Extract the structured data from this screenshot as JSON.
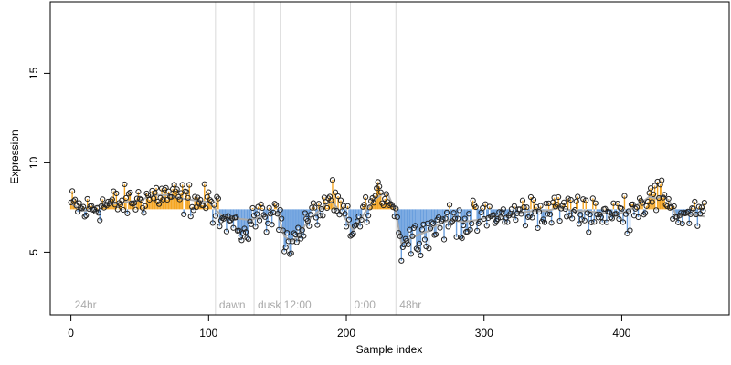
{
  "chart_data": {
    "type": "scatter",
    "xlabel": "Sample index",
    "ylabel": "Expression",
    "xlim": [
      -15,
      478
    ],
    "ylim": [
      1.5,
      19.0
    ],
    "x_ticks": [
      0,
      100,
      200,
      300,
      400
    ],
    "y_ticks": [
      5,
      10,
      15
    ],
    "baseline": 7.4,
    "colors": {
      "above": "#f5a623",
      "below": "#6a9fde",
      "points": "#222222",
      "trend": "#aaaaaa",
      "divider": "#d9d9d9",
      "label": "#aaaaaa"
    },
    "conditions": [
      {
        "label": "24hr",
        "start": 0
      },
      {
        "label": "dawn",
        "start": 105
      },
      {
        "label": "dusk",
        "start": 133
      },
      {
        "label": "12:00",
        "start": 152
      },
      {
        "label": "0:00",
        "start": 203
      },
      {
        "label": "48hr",
        "start": 236
      }
    ],
    "x": [],
    "trend": [
      [
        0,
        7.7
      ],
      [
        10,
        7.3
      ],
      [
        20,
        7.6
      ],
      [
        30,
        7.7
      ],
      [
        40,
        7.8
      ],
      [
        50,
        7.9
      ],
      [
        60,
        8.2
      ],
      [
        70,
        8.2
      ],
      [
        80,
        8.0
      ],
      [
        90,
        7.9
      ],
      [
        100,
        7.8
      ],
      [
        110,
        7.0
      ],
      [
        120,
        6.9
      ],
      [
        130,
        6.8
      ],
      [
        140,
        7.0
      ],
      [
        150,
        7.2
      ],
      [
        155,
        5.9
      ],
      [
        160,
        5.6
      ],
      [
        165,
        5.9
      ],
      [
        170,
        6.5
      ],
      [
        175,
        7.0
      ],
      [
        180,
        7.3
      ],
      [
        185,
        7.7
      ],
      [
        190,
        7.8
      ],
      [
        195,
        7.3
      ],
      [
        200,
        6.8
      ],
      [
        205,
        6.2
      ],
      [
        210,
        6.8
      ],
      [
        215,
        7.4
      ],
      [
        220,
        7.9
      ],
      [
        225,
        8.2
      ],
      [
        230,
        8.3
      ],
      [
        236,
        7.2
      ],
      [
        240,
        5.5
      ],
      [
        250,
        5.9
      ],
      [
        260,
        6.2
      ],
      [
        265,
        6.5
      ],
      [
        275,
        6.8
      ],
      [
        285,
        6.7
      ],
      [
        295,
        6.8
      ],
      [
        305,
        7.0
      ],
      [
        315,
        7.0
      ],
      [
        325,
        7.2
      ],
      [
        335,
        7.3
      ],
      [
        345,
        7.3
      ],
      [
        355,
        7.5
      ],
      [
        365,
        7.3
      ],
      [
        375,
        7.3
      ],
      [
        385,
        7.2
      ],
      [
        395,
        7.1
      ],
      [
        405,
        7.3
      ],
      [
        410,
        7.6
      ],
      [
        415,
        7.8
      ],
      [
        420,
        8.1
      ],
      [
        425,
        8.0
      ],
      [
        430,
        8.2
      ],
      [
        435,
        7.8
      ],
      [
        440,
        7.0
      ],
      [
        450,
        7.1
      ],
      [
        460,
        7.0
      ]
    ],
    "y": []
  }
}
